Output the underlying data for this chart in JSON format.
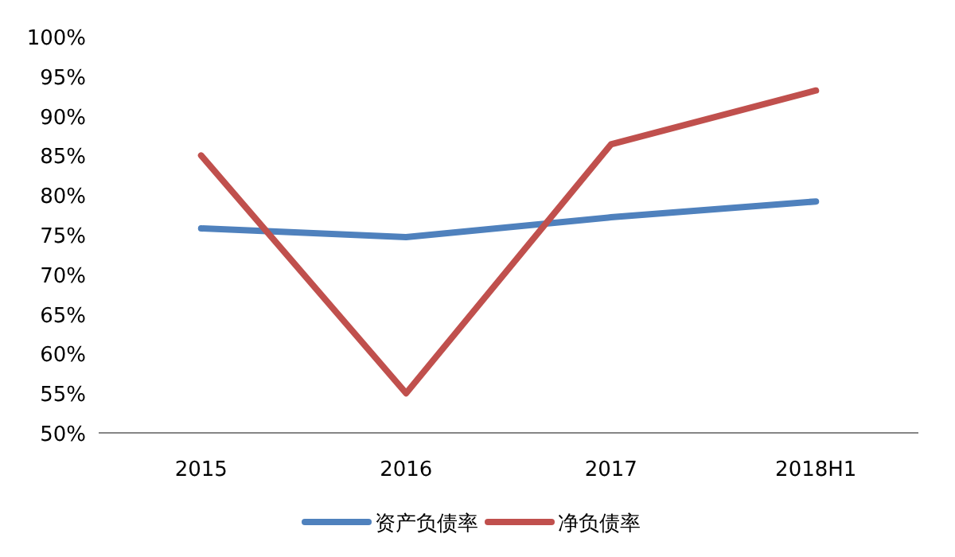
{
  "chart_data": {
    "type": "line",
    "categories": [
      "2015",
      "2016",
      "2017",
      "2018H1"
    ],
    "series": [
      {
        "name": "资产负债率",
        "color": "#4f81bd",
        "values": [
          75.8,
          74.7,
          77.2,
          79.2
        ]
      },
      {
        "name": "净负债率",
        "color": "#c0504d",
        "values": [
          85,
          55,
          86.4,
          93.2
        ]
      }
    ],
    "ylim": [
      50,
      100
    ],
    "yticks": [
      {
        "value": 50,
        "label": "50%"
      },
      {
        "value": 55,
        "label": "55%"
      },
      {
        "value": 60,
        "label": "60%"
      },
      {
        "value": 65,
        "label": "65%"
      },
      {
        "value": 70,
        "label": "70%"
      },
      {
        "value": 75,
        "label": "75%"
      },
      {
        "value": 80,
        "label": "80%"
      },
      {
        "value": 85,
        "label": "85%"
      },
      {
        "value": 90,
        "label": "90%"
      },
      {
        "value": 95,
        "label": "95%"
      },
      {
        "value": 100,
        "label": "100%"
      }
    ],
    "legend": "bottom",
    "marker": "none",
    "line_style": "solid",
    "grid": false
  }
}
